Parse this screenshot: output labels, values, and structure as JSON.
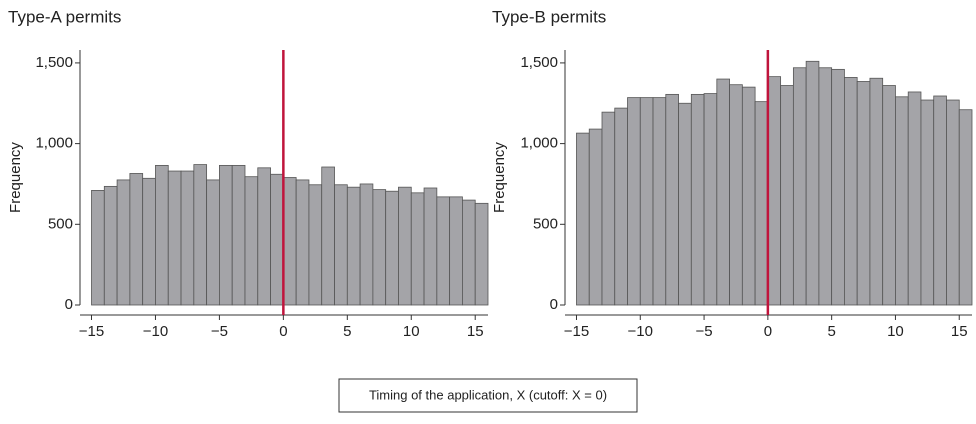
{
  "chart_data": [
    {
      "type": "histogram",
      "title": "Type-A permits",
      "ylabel": "Frequency",
      "color": "#a4a4a8",
      "bins": [
        -15,
        -14,
        -13,
        -12,
        -11,
        -10,
        -9,
        -8,
        -7,
        -6,
        -5,
        -4,
        -3,
        -2,
        -1,
        0,
        1,
        2,
        3,
        4,
        5,
        6,
        7,
        8,
        9,
        10,
        11,
        12,
        13,
        14,
        15,
        16
      ],
      "values": [
        710,
        735,
        775,
        815,
        785,
        865,
        830,
        830,
        870,
        775,
        865,
        865,
        795,
        850,
        810,
        790,
        775,
        745,
        855,
        745,
        730,
        750,
        715,
        705,
        730,
        695,
        725,
        670,
        670,
        650,
        630
      ],
      "xlim": [
        -15.9,
        16
      ],
      "ylim": [
        0,
        1580
      ],
      "xticks": [
        {
          "value": -15,
          "label": "−15"
        },
        {
          "value": -10,
          "label": "−10"
        },
        {
          "value": -5,
          "label": "−5"
        },
        0,
        5,
        10,
        15
      ],
      "yticks": [
        0,
        500,
        {
          "value": 1000,
          "label": "1,000"
        },
        {
          "value": 1500,
          "label": "1,500"
        }
      ],
      "vline": {
        "x": 0,
        "color": "#c0143c"
      }
    },
    {
      "type": "histogram",
      "title": "Type-B permits",
      "ylabel": "Frequency",
      "color": "#a4a4a8",
      "bins": [
        -15,
        -14,
        -13,
        -12,
        -11,
        -10,
        -9,
        -8,
        -7,
        -6,
        -5,
        -4,
        -3,
        -2,
        -1,
        0,
        1,
        2,
        3,
        4,
        5,
        6,
        7,
        8,
        9,
        10,
        11,
        12,
        13,
        14,
        15,
        16
      ],
      "values": [
        1065,
        1090,
        1195,
        1220,
        1285,
        1285,
        1285,
        1305,
        1250,
        1305,
        1310,
        1400,
        1365,
        1350,
        1260,
        1415,
        1360,
        1470,
        1510,
        1470,
        1460,
        1410,
        1385,
        1405,
        1360,
        1290,
        1320,
        1270,
        1295,
        1270,
        1210
      ],
      "xlim": [
        -15.9,
        16
      ],
      "ylim": [
        0,
        1580
      ],
      "xticks": [
        {
          "value": -15,
          "label": "−15"
        },
        {
          "value": -10,
          "label": "−10"
        },
        {
          "value": -5,
          "label": "−5"
        },
        0,
        5,
        10,
        15
      ],
      "yticks": [
        0,
        500,
        {
          "value": 1000,
          "label": "1,000"
        },
        {
          "value": 1500,
          "label": "1,500"
        }
      ],
      "vline": {
        "x": 0,
        "color": "#c0143c"
      }
    }
  ],
  "footer": {
    "text": "Timing of the application, X (cutoff: X = 0)"
  }
}
